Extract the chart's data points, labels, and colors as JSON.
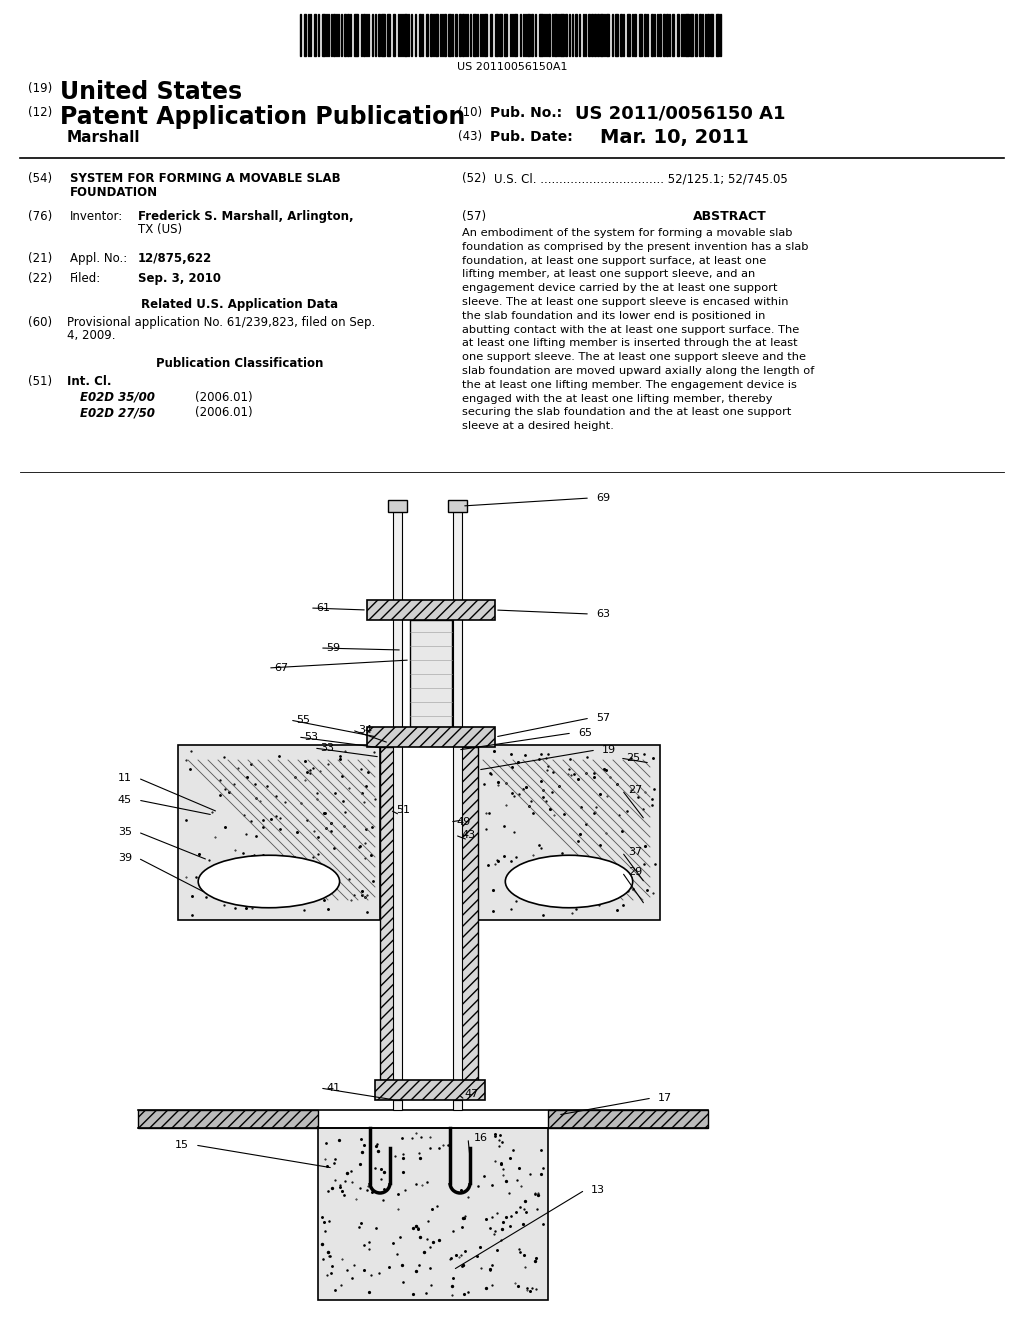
{
  "bg_color": "#ffffff",
  "barcode_text": "US 20110056150A1",
  "pub_no_value": "US 2011/0056150 A1",
  "author": "Marshall",
  "pub_date_value": "Mar. 10, 2011",
  "field54_text1": "SYSTEM FOR FORMING A MOVABLE SLAB",
  "field54_text2": "FOUNDATION",
  "field52_text": "U.S. Cl. ................................. 52/125.1; 52/745.05",
  "field76_val1": "Frederick S. Marshall, Arlington,",
  "field76_val2": "TX (US)",
  "field21_val": "12/875,622",
  "field22_val": "Sep. 3, 2010",
  "related_header": "Related U.S. Application Data",
  "field60_line1": "Provisional application No. 61/239,823, filed on Sep.",
  "field60_line2": "4, 2009.",
  "pub_class_header": "Publication Classification",
  "field51_e1": "E02D 35/00",
  "field51_e1_year": "(2006.01)",
  "field51_e2": "E02D 27/50",
  "field51_e2_year": "(2006.01)",
  "abstract_header": "ABSTRACT",
  "abstract_text": "An embodiment of the system for forming a movable slab foundation as comprised by the present invention has a slab foundation, at least one support surface, at least one lifting member, at least one support sleeve, and an engagement device carried by the at least one support sleeve. The at least one support sleeve is encased within the slab foundation and its lower end is positioned in abutting contact with the at least one support surface. The at least one lifting member is inserted through the at least one support sleeve. The at least one support sleeve and the slab foundation are moved upward axially along the length of the at least one lifting member. The engagement device is engaged with the at least one lifting member, thereby securing the slab foundation and the at least one support sleeve at a desired height."
}
